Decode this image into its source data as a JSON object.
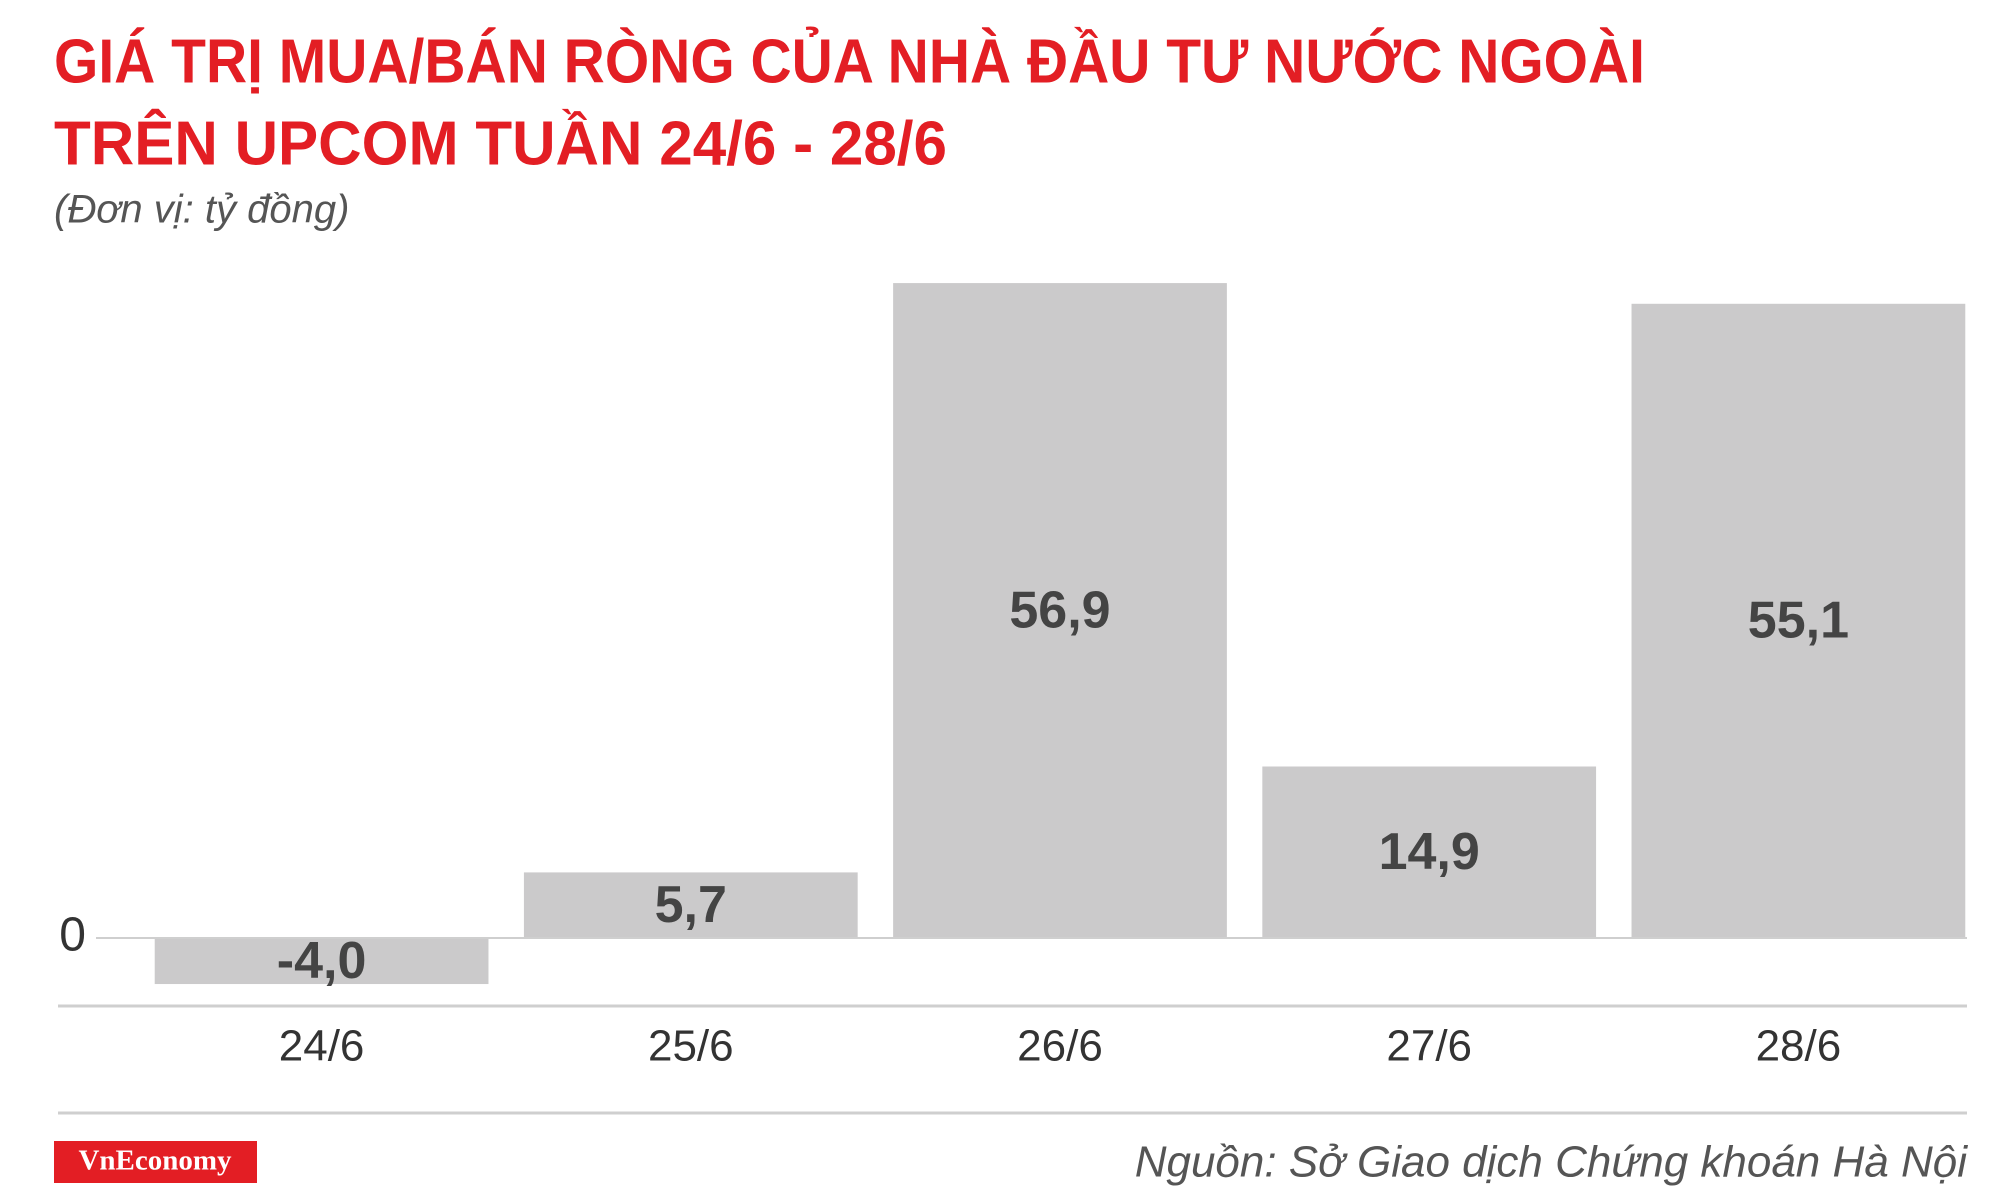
{
  "chart_data": {
    "type": "bar",
    "title": [
      "GIÁ TRỊ MUA/BÁN RÒNG CỦA NHÀ ĐẦU TƯ NƯỚC NGOÀI",
      "TRÊN UPCOM TUẦN 24/6 - 28/6"
    ],
    "subtitle": "(Đơn vị: tỷ đồng)",
    "categories": [
      "24/6",
      "25/6",
      "26/6",
      "27/6",
      "28/6"
    ],
    "values": [
      -4.0,
      5.7,
      56.9,
      14.9,
      55.1
    ],
    "value_labels": [
      "-4,0",
      "5,7",
      "56,9",
      "14,9",
      "55,1"
    ],
    "color": "#cbcacb",
    "ylim": [
      -10,
      60
    ],
    "yticks": [
      0
    ],
    "grid": false,
    "source": "Nguồn: Sở Giao dịch Chứng khoán Hà Nội",
    "logo": "VnEconomy"
  }
}
